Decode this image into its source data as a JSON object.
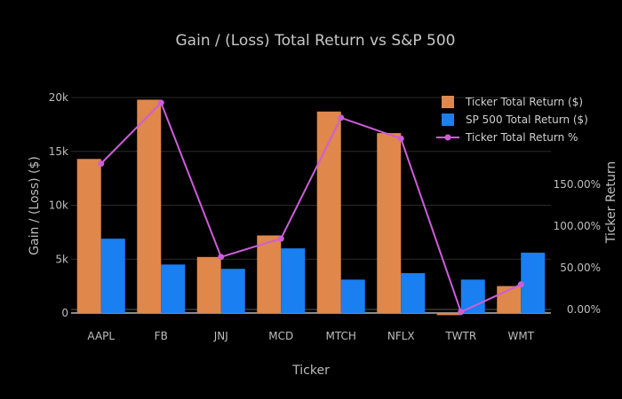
{
  "chart_data": {
    "type": "bar",
    "title": "Gain / (Loss) Total Return vs S&P 500",
    "xlabel": "Ticker",
    "ylabel": "Gain / (Loss) ($)",
    "y2label": "Ticker Return",
    "categories": [
      "AAPL",
      "FB",
      "JNJ",
      "MCD",
      "MTCH",
      "NFLX",
      "TWTR",
      "WMT"
    ],
    "ylim": [
      -300,
      21000
    ],
    "yticks": [
      0,
      5000,
      10000,
      15000,
      20000
    ],
    "ytick_labels": [
      "0",
      "5k",
      "10k",
      "15k",
      "20k"
    ],
    "y2lim": [
      -5,
      215
    ],
    "y2ticks": [
      0,
      50,
      100,
      150
    ],
    "y2tick_labels": [
      "0.00%",
      "50.00%",
      "100.00%",
      "150.00%"
    ],
    "grid": true,
    "legend_position": "top-right",
    "series": [
      {
        "name": "Ticker Total Return ($)",
        "kind": "bar",
        "axis": "y",
        "color": "#e0874b",
        "values": [
          14300,
          19800,
          5200,
          7200,
          18700,
          16700,
          -200,
          2500
        ]
      },
      {
        "name": "SP 500 Total Return ($)",
        "kind": "bar",
        "axis": "y",
        "color": "#1a7ff0",
        "values": [
          6900,
          4500,
          4100,
          6000,
          3100,
          3700,
          3100,
          5600
        ]
      },
      {
        "name": "Ticker Total Return %",
        "kind": "line",
        "axis": "y2",
        "color": "#cc5ed8",
        "values": [
          175,
          248,
          63,
          85,
          230,
          205,
          -3,
          30
        ]
      }
    ]
  }
}
